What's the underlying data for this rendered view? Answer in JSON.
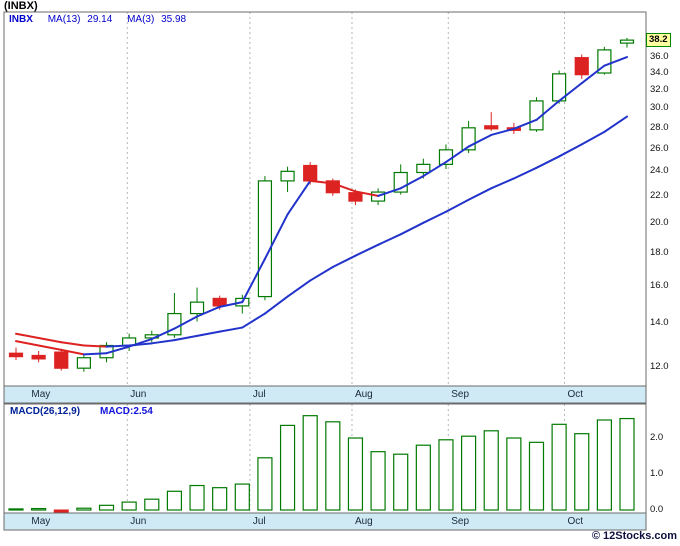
{
  "header": {
    "title": "(INBX)"
  },
  "legend": {
    "symbol": "INBX",
    "ma13_label": "MA(13)",
    "ma13_value": "29.14",
    "ma3_label": "MA(3)",
    "ma3_value": "35.98"
  },
  "macd_panel": {
    "label": "MACD(26,12,9)",
    "value": "MACD:2.54"
  },
  "last_price_label": "38.2",
  "watermark": "© 12Stocks.com",
  "chart_data": {
    "type": "candlestick",
    "symbol": "INBX",
    "scale": "log",
    "title": "(INBX)",
    "price_ticks": [
      "38.0",
      "36.0",
      "34.0",
      "32.0",
      "30.0",
      "28.0",
      "26.0",
      "24.0",
      "22.0",
      "20.0",
      "18.0",
      "16.0",
      "14.0",
      "12.0"
    ],
    "macd_ticks": [
      "2.0",
      "1.0",
      "0.0"
    ],
    "months": [
      {
        "label": "May",
        "x": 0.038
      },
      {
        "label": "Jun",
        "x": 0.192
      },
      {
        "label": "Jul",
        "x": 0.383
      },
      {
        "label": "Aug",
        "x": 0.542
      },
      {
        "label": "Sep",
        "x": 0.692
      },
      {
        "label": "Oct",
        "x": 0.873
      }
    ],
    "candles": [
      [
        12.6,
        12.85,
        12.3,
        12.45
      ],
      [
        12.5,
        12.7,
        12.2,
        12.35
      ],
      [
        12.65,
        12.8,
        11.85,
        11.95
      ],
      [
        11.95,
        12.5,
        11.8,
        12.4
      ],
      [
        12.4,
        13.1,
        12.2,
        12.95
      ],
      [
        12.95,
        13.5,
        12.7,
        13.3
      ],
      [
        13.3,
        13.65,
        13.1,
        13.45
      ],
      [
        13.45,
        15.6,
        13.3,
        14.5
      ],
      [
        14.5,
        15.9,
        14.1,
        15.1
      ],
      [
        15.3,
        15.45,
        14.7,
        14.9
      ],
      [
        14.9,
        15.5,
        14.5,
        15.3
      ],
      [
        15.4,
        23.6,
        15.2,
        23.2
      ],
      [
        23.2,
        24.4,
        22.3,
        24.0
      ],
      [
        24.5,
        24.8,
        22.9,
        23.2
      ],
      [
        23.2,
        23.4,
        22.0,
        22.25
      ],
      [
        22.25,
        22.5,
        21.3,
        21.6
      ],
      [
        21.6,
        22.6,
        21.3,
        22.3
      ],
      [
        22.3,
        24.6,
        22.1,
        23.9
      ],
      [
        23.9,
        25.1,
        23.4,
        24.6
      ],
      [
        24.6,
        26.4,
        24.2,
        25.9
      ],
      [
        25.9,
        28.7,
        25.6,
        28.0
      ],
      [
        28.2,
        29.6,
        27.7,
        27.9
      ],
      [
        28.0,
        28.5,
        27.4,
        27.75
      ],
      [
        27.8,
        31.2,
        27.6,
        30.8
      ],
      [
        30.8,
        34.3,
        30.5,
        33.9
      ],
      [
        35.9,
        36.3,
        33.3,
        33.8
      ],
      [
        34.0,
        37.3,
        33.8,
        36.9
      ],
      [
        37.8,
        38.5,
        37.2,
        38.2
      ]
    ],
    "ma3": [
      13.15,
      12.95,
      12.75,
      12.55,
      12.6,
      12.9,
      13.25,
      13.75,
      14.35,
      14.85,
      15.1,
      17.6,
      20.6,
      23.2,
      23.0,
      22.35,
      22.0,
      22.6,
      23.6,
      24.8,
      26.2,
      27.3,
      27.9,
      28.8,
      30.8,
      32.8,
      34.9,
      35.98
    ],
    "ma13": [
      13.5,
      13.3,
      13.1,
      12.95,
      12.9,
      12.95,
      13.05,
      13.2,
      13.4,
      13.6,
      13.8,
      14.5,
      15.4,
      16.3,
      17.1,
      17.8,
      18.5,
      19.2,
      20.0,
      20.8,
      21.7,
      22.6,
      23.4,
      24.3,
      25.3,
      26.4,
      27.6,
      29.14
    ],
    "macd_hist": [
      0.03,
      0.04,
      -0.07,
      0.05,
      0.13,
      0.22,
      0.3,
      0.52,
      0.68,
      0.62,
      0.72,
      1.45,
      2.35,
      2.62,
      2.45,
      2.0,
      1.62,
      1.55,
      1.8,
      1.95,
      2.05,
      2.2,
      2.0,
      1.88,
      2.38,
      2.12,
      2.5,
      2.54
    ],
    "last_price": 38.2,
    "macd_last": 2.54,
    "colors": {
      "up": "#007a00",
      "down": "#dd2222",
      "ma": "#2233cc",
      "strip": "#cfe9f5",
      "grid": "#b5b5b5",
      "border": "#6b6b6b",
      "badge_bg": "#ffffa0",
      "badge_border": "#008800"
    }
  }
}
